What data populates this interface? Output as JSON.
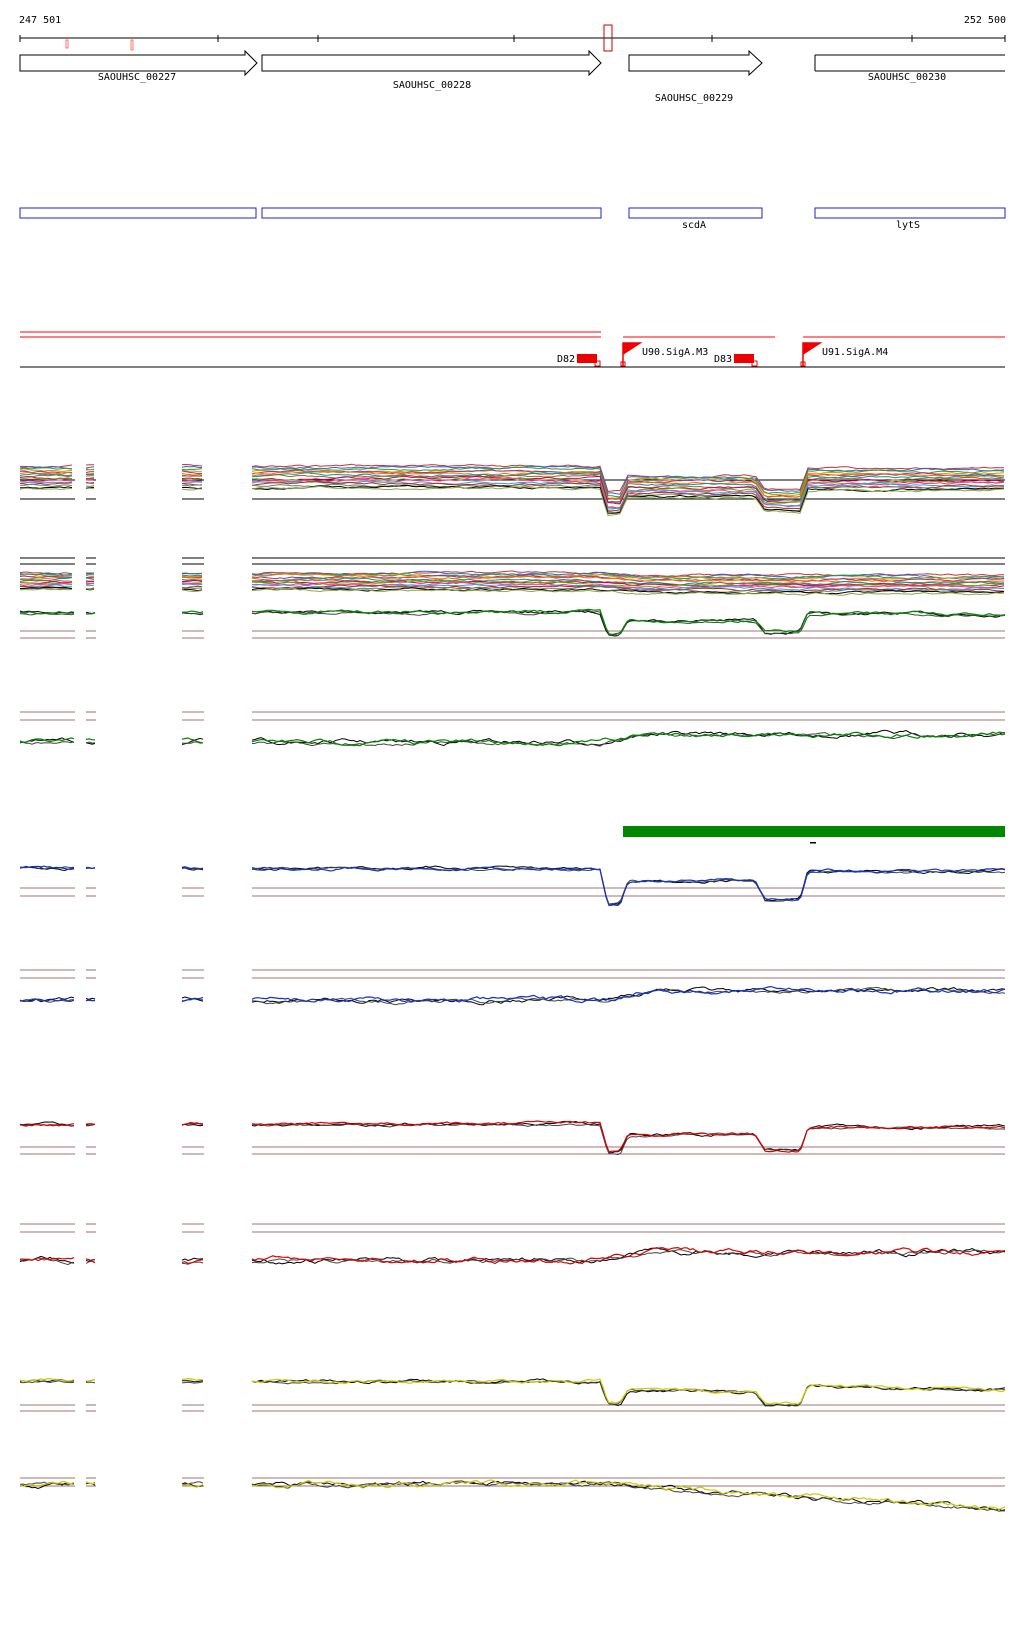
{
  "coords": {
    "start": "247 501",
    "end": "252 500"
  },
  "genes": [
    {
      "name": "SAOUHSC_00227",
      "strand": "+"
    },
    {
      "name": "SAOUHSC_00228",
      "strand": "+"
    },
    {
      "name": "SAOUHSC_00229",
      "strand": "+"
    },
    {
      "name": "SAOUHSC_00230",
      "strand": "+"
    }
  ],
  "gene_symbols": [
    "",
    "",
    "scdA",
    "lytS"
  ],
  "features": {
    "terminators": [
      "D82",
      "D83"
    ],
    "promoters": [
      "U90.SigA.M3",
      "U91.SigA.M4"
    ]
  },
  "colors": {
    "gene_outline": "#000000",
    "cds_outline": "#2222cc",
    "feature": "#ff0000",
    "green_track": "#008800",
    "blue_track": "#1133cc",
    "red_track": "#dd0000",
    "yellow_track": "#cccc00",
    "reference_line": "#884444",
    "condition_bar": "#008800"
  }
}
